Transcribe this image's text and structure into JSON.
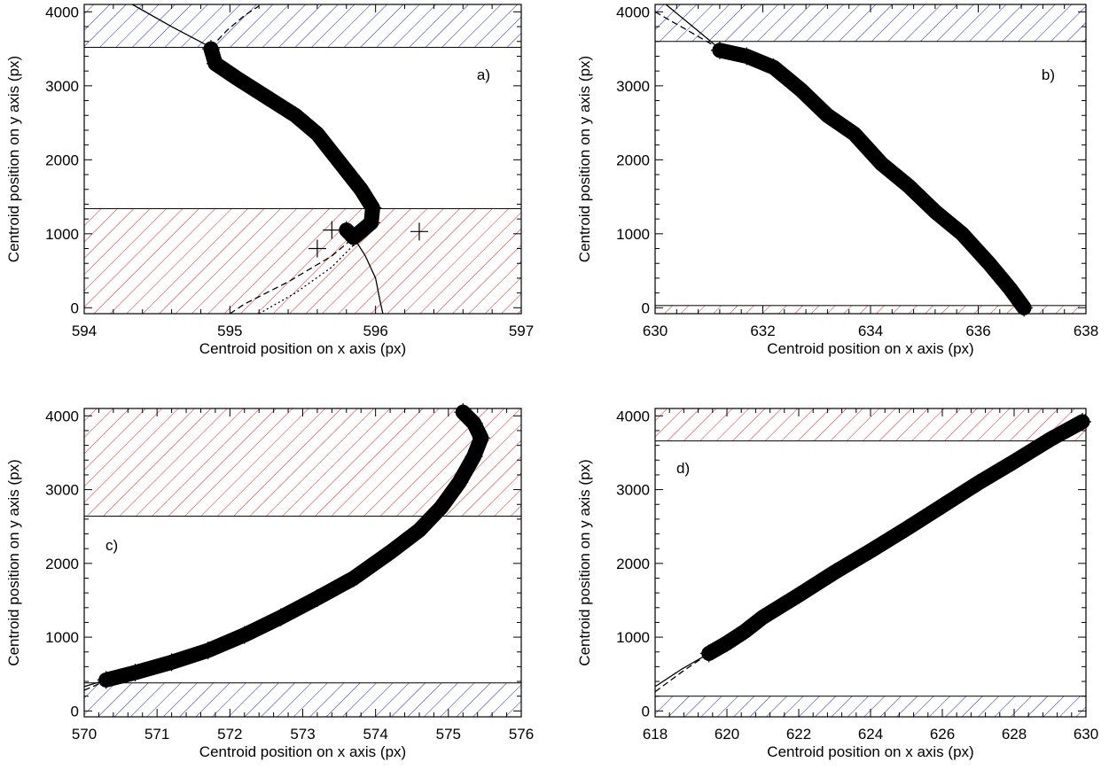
{
  "chart_data": [
    {
      "type": "scatter",
      "panel_label": "a)",
      "xlabel": "Centroid position on x axis (px)",
      "ylabel": "Centroid position on y axis (px)",
      "xlim": [
        594,
        597
      ],
      "ylim": [
        -80,
        4100
      ],
      "xticks": [
        594,
        595,
        596,
        597
      ],
      "yticks": [
        0,
        1000,
        2000,
        3000,
        4000
      ],
      "label_pos": "top-right",
      "hatch_bands": [
        {
          "color": "#2222cc",
          "y_from": 3520,
          "y_to": 4100
        },
        {
          "color": "#dd2222",
          "y_from": -80,
          "y_to": 1340
        }
      ],
      "series": [
        {
          "style": "markers",
          "points": [
            [
              594.87,
              3500
            ],
            [
              594.9,
              3300
            ],
            [
              595.05,
              3100
            ],
            [
              595.25,
              2850
            ],
            [
              595.45,
              2600
            ],
            [
              595.6,
              2350
            ],
            [
              595.7,
              2100
            ],
            [
              595.8,
              1850
            ],
            [
              595.9,
              1600
            ],
            [
              595.98,
              1350
            ],
            [
              595.97,
              1150
            ],
            [
              595.85,
              950
            ],
            [
              595.8,
              1050
            ]
          ]
        },
        {
          "style": "solid",
          "points": [
            [
              594.33,
              4100
            ],
            [
              594.6,
              3800
            ],
            [
              594.87,
              3520
            ]
          ]
        },
        {
          "style": "dashed",
          "points": [
            [
              594.87,
              3520
            ],
            [
              594.98,
              3750
            ],
            [
              595.1,
              3950
            ],
            [
              595.2,
              4080
            ]
          ]
        },
        {
          "style": "solid",
          "points": [
            [
              595.85,
              950
            ],
            [
              595.93,
              700
            ],
            [
              596.0,
              400
            ],
            [
              596.03,
              100
            ],
            [
              596.05,
              -80
            ]
          ]
        },
        {
          "style": "dashed",
          "points": [
            [
              595.0,
              -80
            ],
            [
              595.1,
              50
            ],
            [
              595.4,
              350
            ],
            [
              595.7,
              700
            ],
            [
              595.85,
              950
            ]
          ]
        },
        {
          "style": "dotted",
          "points": [
            [
              595.2,
              -80
            ],
            [
              595.45,
              200
            ],
            [
              595.7,
              550
            ],
            [
              595.85,
              850
            ]
          ]
        }
      ],
      "outliers": [
        [
          595.6,
          800
        ],
        [
          596.3,
          1030
        ],
        [
          595.7,
          1050
        ]
      ]
    },
    {
      "type": "scatter",
      "panel_label": "b)",
      "xlabel": "Centroid position on x axis (px)",
      "ylabel": "Centroid position on y axis (px)",
      "xlim": [
        630,
        638
      ],
      "ylim": [
        -80,
        4100
      ],
      "xticks": [
        630,
        632,
        634,
        636,
        638
      ],
      "yticks": [
        0,
        1000,
        2000,
        3000,
        4000
      ],
      "label_pos": "top-right",
      "hatch_bands": [
        {
          "color": "#2222cc",
          "y_from": 3600,
          "y_to": 4100
        },
        {
          "color": "#dd2222",
          "y_from": -80,
          "y_to": 30
        }
      ],
      "series": [
        {
          "style": "markers",
          "points": [
            [
              631.2,
              3480
            ],
            [
              631.7,
              3400
            ],
            [
              632.2,
              3250
            ],
            [
              632.7,
              2950
            ],
            [
              633.2,
              2600
            ],
            [
              633.7,
              2350
            ],
            [
              634.2,
              1950
            ],
            [
              634.7,
              1650
            ],
            [
              635.2,
              1300
            ],
            [
              635.7,
              1000
            ],
            [
              636.2,
              600
            ],
            [
              636.6,
              250
            ],
            [
              636.85,
              0
            ]
          ]
        },
        {
          "style": "solid",
          "points": [
            [
              630.2,
              4100
            ],
            [
              630.7,
              3800
            ],
            [
              631.2,
              3500
            ]
          ]
        },
        {
          "style": "dashed",
          "points": [
            [
              630.0,
              4000
            ],
            [
              630.6,
              3750
            ],
            [
              631.2,
              3500
            ]
          ]
        }
      ],
      "outliers": []
    },
    {
      "type": "scatter",
      "panel_label": "c)",
      "xlabel": "Centroid position on x axis (px)",
      "ylabel": "Centroid position on y axis (px)",
      "xlim": [
        570,
        576
      ],
      "ylim": [
        -80,
        4100
      ],
      "xticks": [
        570,
        571,
        572,
        573,
        574,
        575,
        576
      ],
      "yticks": [
        0,
        1000,
        2000,
        3000,
        4000
      ],
      "label_pos": "middle-left",
      "hatch_bands": [
        {
          "color": "#dd2222",
          "y_from": 2640,
          "y_to": 4100
        },
        {
          "color": "#2222cc",
          "y_from": -80,
          "y_to": 380
        }
      ],
      "series": [
        {
          "style": "markers",
          "points": [
            [
              570.3,
              420
            ],
            [
              570.7,
              520
            ],
            [
              571.2,
              660
            ],
            [
              571.7,
              820
            ],
            [
              572.2,
              1030
            ],
            [
              572.7,
              1270
            ],
            [
              573.2,
              1530
            ],
            [
              573.7,
              1800
            ],
            [
              574.2,
              2150
            ],
            [
              574.6,
              2450
            ],
            [
              574.9,
              2760
            ],
            [
              575.15,
              3100
            ],
            [
              575.35,
              3450
            ],
            [
              575.45,
              3700
            ],
            [
              575.35,
              3900
            ],
            [
              575.2,
              4050
            ]
          ]
        },
        {
          "style": "solid",
          "points": [
            [
              570.0,
              330
            ],
            [
              570.3,
              420
            ]
          ]
        },
        {
          "style": "dashed",
          "points": [
            [
              570.0,
              280
            ],
            [
              570.3,
              410
            ]
          ]
        }
      ],
      "outliers": []
    },
    {
      "type": "scatter",
      "panel_label": "d)",
      "xlabel": "Centroid position on x axis (px)",
      "ylabel": "Centroid position on y axis (px)",
      "xlim": [
        618,
        630
      ],
      "ylim": [
        -80,
        4100
      ],
      "xticks": [
        618,
        620,
        622,
        624,
        626,
        628,
        630
      ],
      "yticks": [
        0,
        1000,
        2000,
        3000,
        4000
      ],
      "label_pos": "top-left",
      "hatch_bands": [
        {
          "color": "#dd2222",
          "y_from": 3660,
          "y_to": 4100
        },
        {
          "color": "#2222cc",
          "y_from": -80,
          "y_to": 200
        }
      ],
      "series": [
        {
          "style": "markers",
          "points": [
            [
              619.5,
              780
            ],
            [
              620.0,
              920
            ],
            [
              620.5,
              1080
            ],
            [
              621.0,
              1270
            ],
            [
              622.0,
              1570
            ],
            [
              623.0,
              1880
            ],
            [
              624.0,
              2170
            ],
            [
              625.0,
              2470
            ],
            [
              626.0,
              2780
            ],
            [
              627.0,
              3090
            ],
            [
              628.0,
              3380
            ],
            [
              629.0,
              3680
            ],
            [
              629.9,
              3920
            ]
          ]
        },
        {
          "style": "solid",
          "points": [
            [
              618.0,
              330
            ],
            [
              618.75,
              570
            ],
            [
              619.5,
              780
            ]
          ]
        },
        {
          "style": "dashed",
          "points": [
            [
              618.0,
              260
            ],
            [
              618.75,
              530
            ],
            [
              619.5,
              780
            ]
          ]
        },
        {
          "style": "solid",
          "points": [
            [
              629.2,
              3750
            ],
            [
              630.0,
              4020
            ]
          ]
        }
      ],
      "outliers": []
    }
  ]
}
